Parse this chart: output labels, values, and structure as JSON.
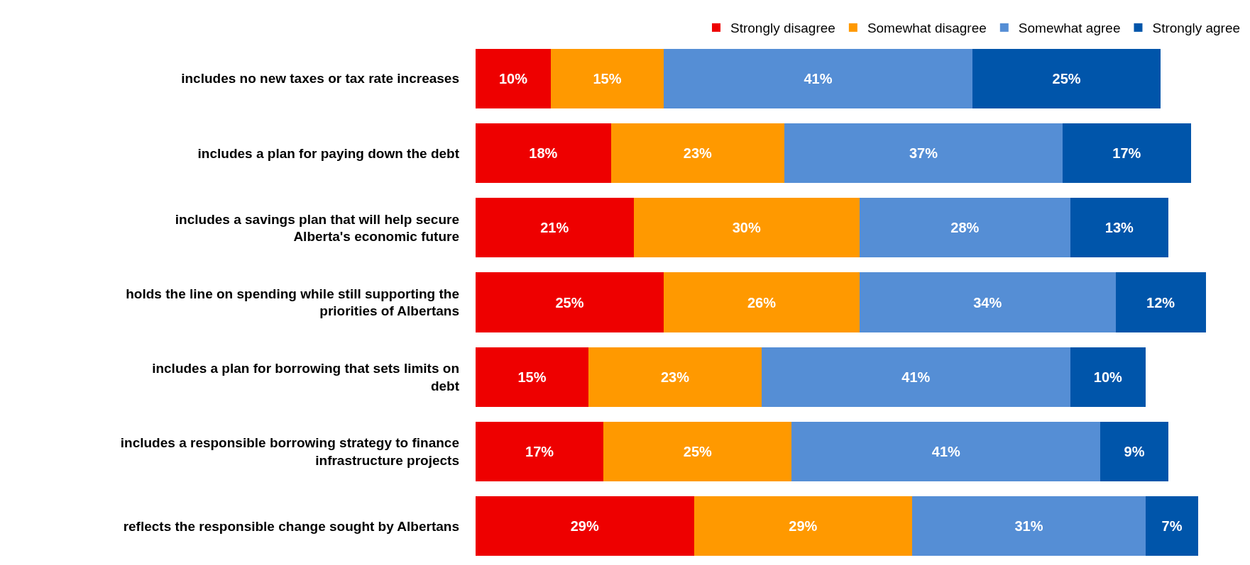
{
  "chart_data": {
    "type": "bar",
    "orientation": "horizontal",
    "stacked": true,
    "categories": [
      "includes no new taxes or tax rate increases",
      "includes a plan for paying down the debt",
      "includes a savings plan that will help secure Alberta's economic future",
      "holds the line on spending while still supporting the priorities of Albertans",
      "includes a plan for borrowing that sets limits on debt",
      "includes a responsible borrowing strategy to finance infrastructure projects",
      "reflects the responsible change sought by Albertans"
    ],
    "series": [
      {
        "name": "Strongly disagree",
        "color": "#ee0000",
        "values": [
          10,
          18,
          21,
          25,
          15,
          17,
          29
        ],
        "value_labels": [
          "10%",
          "18%",
          "21%",
          "25%",
          "15%",
          "17%",
          "29%"
        ]
      },
      {
        "name": "Somewhat disagree",
        "color": "#ff9900",
        "values": [
          15,
          23,
          30,
          26,
          23,
          25,
          29
        ],
        "value_labels": [
          "15%",
          "23%",
          "30%",
          "26%",
          "23%",
          "25%",
          "29%"
        ]
      },
      {
        "name": "Somewhat agree",
        "color": "#558ed5",
        "values": [
          41,
          37,
          28,
          34,
          41,
          41,
          31
        ],
        "value_labels": [
          "41%",
          "37%",
          "28%",
          "34%",
          "41%",
          "41%",
          "31%"
        ]
      },
      {
        "name": "Strongly agree",
        "color": "#0055aa",
        "values": [
          25,
          17,
          13,
          12,
          10,
          9,
          7
        ],
        "value_labels": [
          "25%",
          "17%",
          "13%",
          "12%",
          "10%",
          "9%",
          "7%"
        ]
      }
    ],
    "tick_labels": "y",
    "grid": false,
    "legend": "top right"
  }
}
